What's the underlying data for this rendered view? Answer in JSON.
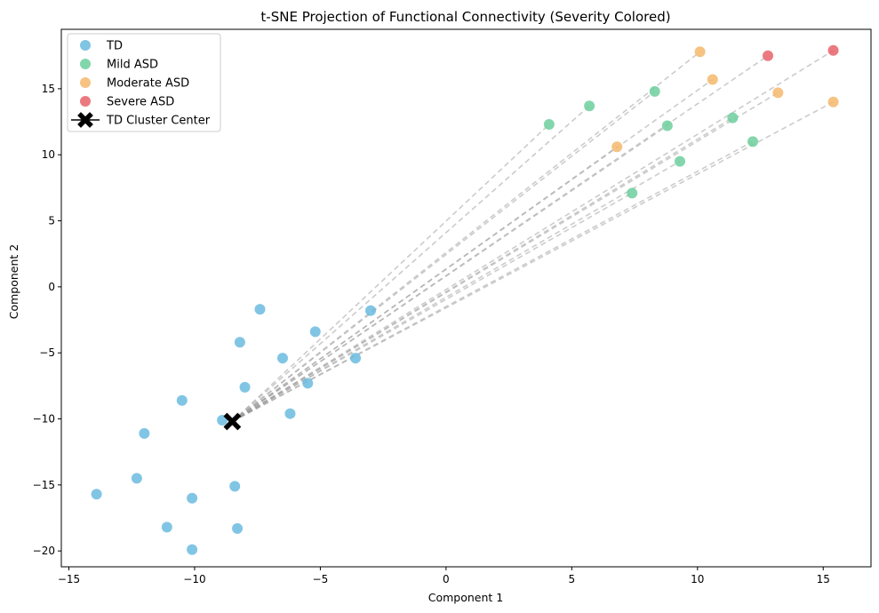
{
  "chart_data": {
    "type": "scatter",
    "title": "t-SNE Projection of Functional Connectivity (Severity Colored)",
    "xlabel": "Component 1",
    "ylabel": "Component 2",
    "xlim": [
      -15.3,
      16.9
    ],
    "ylim": [
      -21.2,
      19.5
    ],
    "xticks": [
      -15,
      -10,
      -5,
      0,
      5,
      10,
      15
    ],
    "yticks": [
      -20,
      -15,
      -10,
      -5,
      0,
      5,
      10,
      15
    ],
    "grid": false,
    "legend_position": "top-left",
    "colors": {
      "TD": "#6bbbe0",
      "Mild ASD": "#6dcf9c",
      "Moderate ASD": "#f4b86d",
      "Severe ASD": "#e8636a",
      "center": "#000000",
      "lines": "#999999"
    },
    "series": [
      {
        "name": "TD",
        "points": [
          [
            -13.9,
            -15.7
          ],
          [
            -12.3,
            -14.5
          ],
          [
            -12.0,
            -11.1
          ],
          [
            -11.1,
            -18.2
          ],
          [
            -10.5,
            -8.6
          ],
          [
            -10.1,
            -16.0
          ],
          [
            -10.1,
            -19.9
          ],
          [
            -8.9,
            -10.1
          ],
          [
            -8.4,
            -15.1
          ],
          [
            -8.3,
            -18.3
          ],
          [
            -8.2,
            -4.2
          ],
          [
            -8.0,
            -7.6
          ],
          [
            -7.4,
            -1.7
          ],
          [
            -6.5,
            -5.4
          ],
          [
            -6.2,
            -9.6
          ],
          [
            -5.5,
            -7.3
          ],
          [
            -5.2,
            -3.4
          ],
          [
            -3.6,
            -5.4
          ],
          [
            -3.0,
            -1.8
          ]
        ]
      },
      {
        "name": "Mild ASD",
        "points": [
          [
            4.1,
            12.3
          ],
          [
            5.7,
            13.7
          ],
          [
            7.4,
            7.1
          ],
          [
            8.3,
            14.8
          ],
          [
            8.8,
            12.2
          ],
          [
            9.3,
            9.5
          ],
          [
            11.4,
            12.8
          ],
          [
            12.2,
            11.0
          ]
        ]
      },
      {
        "name": "Moderate ASD",
        "points": [
          [
            6.8,
            10.6
          ],
          [
            10.1,
            17.8
          ],
          [
            10.6,
            15.7
          ],
          [
            13.2,
            14.7
          ],
          [
            15.4,
            14.0
          ]
        ]
      },
      {
        "name": "Severe ASD",
        "points": [
          [
            12.8,
            17.5
          ],
          [
            15.4,
            17.9
          ]
        ]
      }
    ],
    "center": {
      "name": "TD Cluster Center",
      "x": -8.5,
      "y": -10.2
    }
  }
}
